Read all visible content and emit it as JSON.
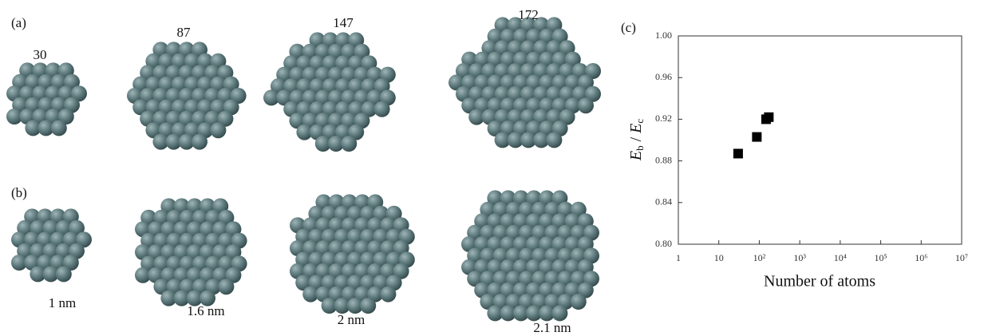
{
  "panels": {
    "a": {
      "label": "(a)",
      "sizes": [
        "30",
        "87",
        "147",
        "172"
      ]
    },
    "b": {
      "label": "(b)",
      "diameters": [
        "1 nm",
        "1.6 nm",
        "2 nm",
        "2.1 nm"
      ]
    },
    "c": {
      "label": "(c)"
    }
  },
  "chart_data": {
    "type": "scatter",
    "xlabel": "Number of atoms",
    "ylabel": {
      "main1": "E",
      "sub1": "b",
      "sep": " / ",
      "main2": "E",
      "sub2": "c"
    },
    "x": [
      30,
      87,
      147,
      172
    ],
    "values": [
      0.887,
      0.903,
      0.92,
      0.922
    ],
    "color": "#000000",
    "xscale": "log",
    "xlim": [
      1,
      10000000
    ],
    "xticks": [
      1,
      10,
      {
        "value": 100,
        "label": "10²"
      },
      {
        "value": 1000,
        "label": "10³"
      },
      {
        "value": 10000,
        "label": "10⁴"
      },
      {
        "value": 100000,
        "label": "10⁵"
      },
      {
        "value": 1000000,
        "label": "10⁶"
      },
      {
        "value": 10000000,
        "label": "10⁷"
      }
    ],
    "ylim": [
      0.8,
      1.0
    ],
    "yticks": [
      {
        "value": 0.8,
        "label": "0.80"
      },
      0.84,
      0.88,
      0.92,
      0.96,
      {
        "value": 1.0,
        "label": "1.00"
      }
    ],
    "grid": false
  }
}
